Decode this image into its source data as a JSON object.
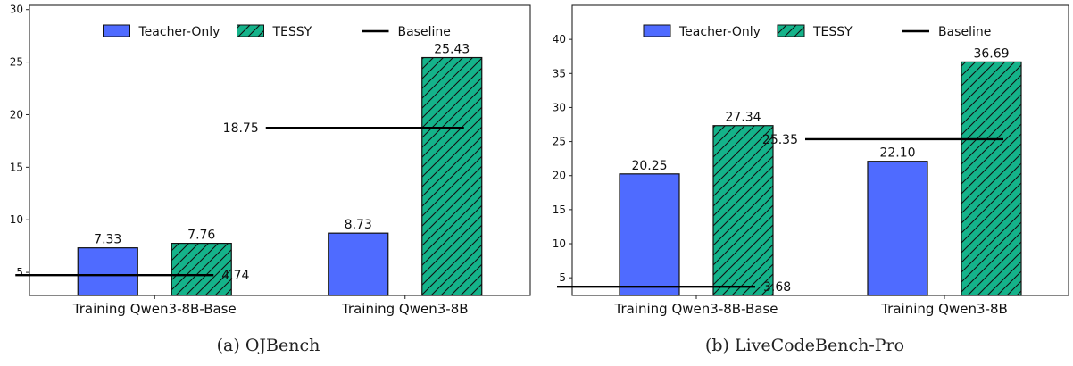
{
  "charts": [
    {
      "caption": "(a) OJBench",
      "chart_data": {
        "type": "bar",
        "categories": [
          "Training Qwen3-8B-Base",
          "Training Qwen3-8B"
        ],
        "series": [
          {
            "name": "Teacher-Only",
            "values": [
              7.33,
              8.73
            ],
            "labels": [
              "7.33",
              "8.73"
            ],
            "color": "#4f6bff",
            "hatch": false
          },
          {
            "name": "TESSY",
            "values": [
              7.76,
              25.43
            ],
            "labels": [
              "7.76",
              "25.43"
            ],
            "color": "#14b38a",
            "hatch": true
          }
        ],
        "baseline": {
          "name": "Baseline",
          "values": [
            4.74,
            18.75
          ],
          "labels": [
            "4.74",
            "18.75"
          ],
          "label_side": [
            "right",
            "left"
          ]
        },
        "ylim": [
          2.8,
          30.4
        ],
        "yticks": [
          5,
          10,
          15,
          20,
          25,
          30
        ],
        "ytick_labels": [
          "5",
          "10",
          "15",
          "20",
          "25",
          "30"
        ],
        "legend_position": "upper center",
        "grid": false
      }
    },
    {
      "caption": "(b) LiveCodeBench-Pro",
      "chart_data": {
        "type": "bar",
        "categories": [
          "Training Qwen3-8B-Base",
          "Training Qwen3-8B"
        ],
        "series": [
          {
            "name": "Teacher-Only",
            "values": [
              20.25,
              22.1
            ],
            "labels": [
              "20.25",
              "22.10"
            ],
            "color": "#4f6bff",
            "hatch": false
          },
          {
            "name": "TESSY",
            "values": [
              27.34,
              36.69
            ],
            "labels": [
              "27.34",
              "36.69"
            ],
            "color": "#14b38a",
            "hatch": true
          }
        ],
        "baseline": {
          "name": "Baseline",
          "values": [
            3.68,
            25.35
          ],
          "labels": [
            "3.68",
            "25.35"
          ],
          "label_side": [
            "right",
            "left"
          ]
        },
        "ylim": [
          2.4,
          45.0
        ],
        "yticks": [
          5,
          10,
          15,
          20,
          25,
          30,
          35,
          40
        ],
        "ytick_labels": [
          "5",
          "10",
          "15",
          "20",
          "25",
          "30",
          "35",
          "40"
        ],
        "legend_position": "upper center",
        "grid": false
      }
    }
  ]
}
